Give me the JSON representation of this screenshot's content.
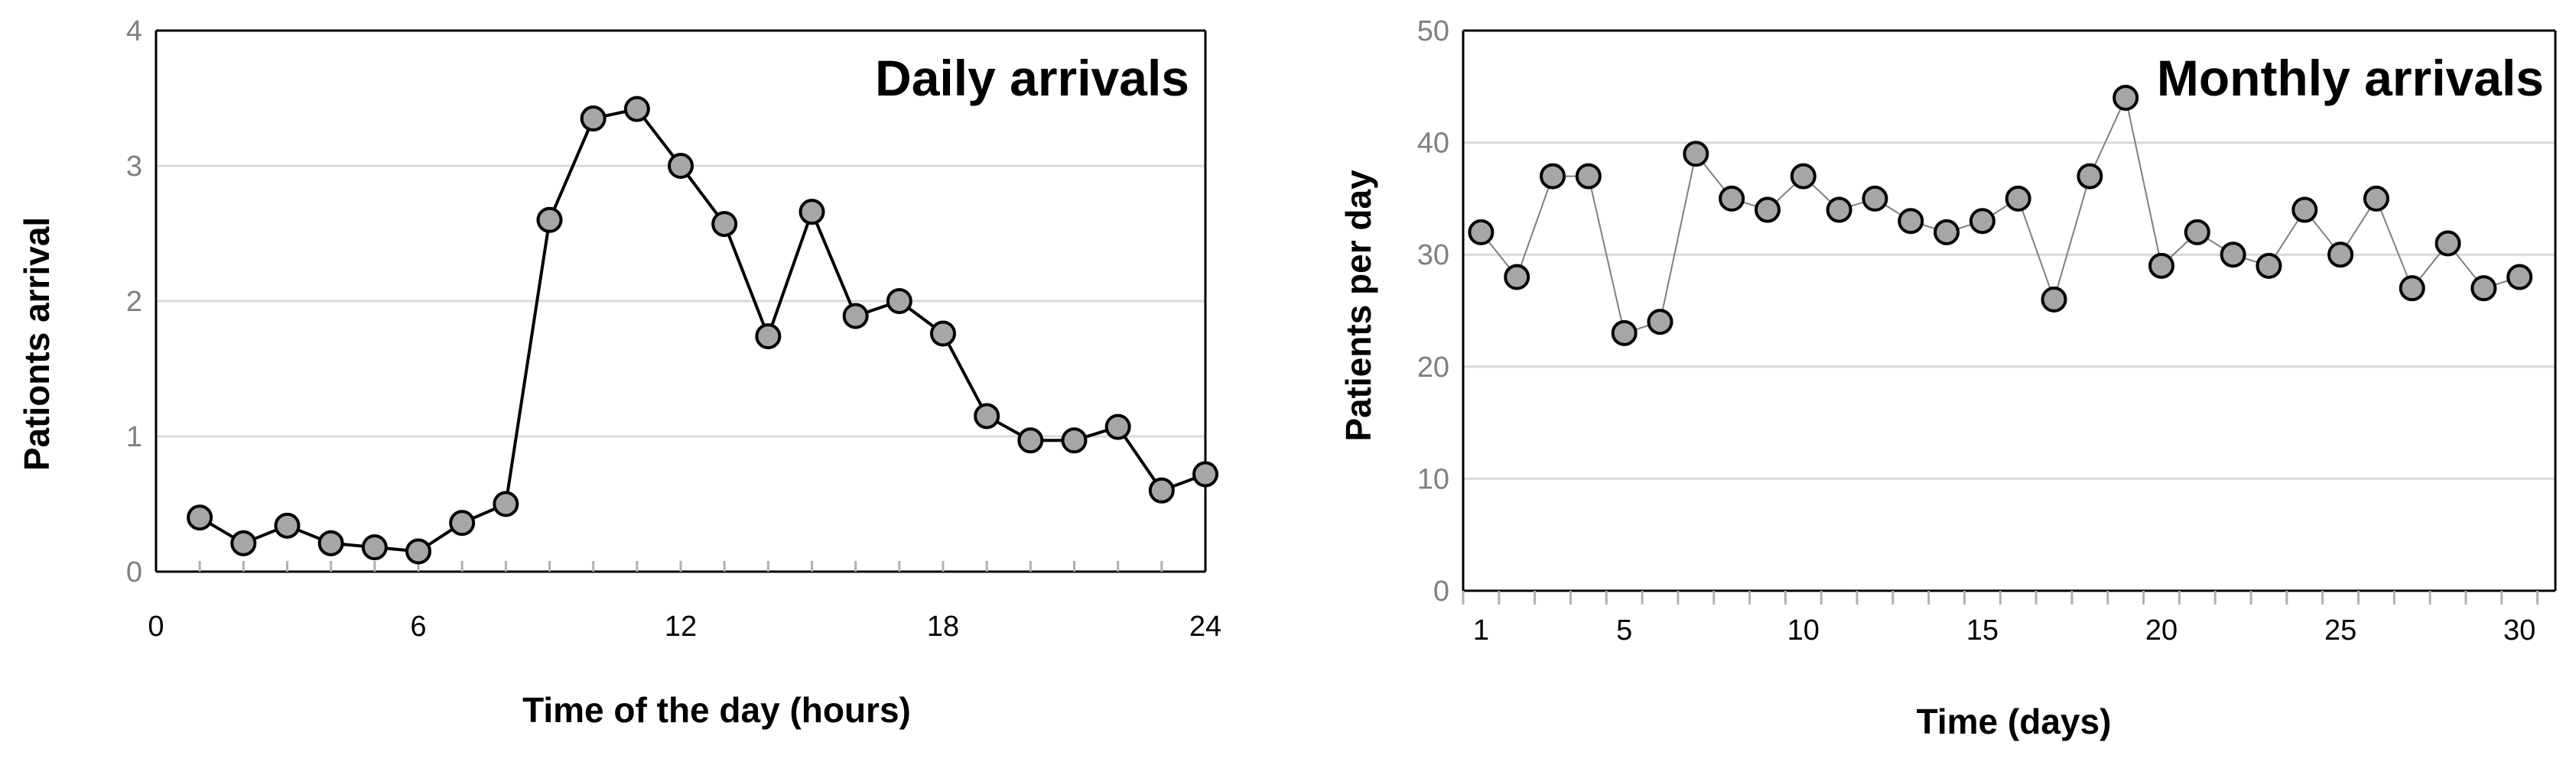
{
  "chart_data": [
    {
      "type": "line",
      "title": "Daily arrivals",
      "xlabel": "Time of the day (hours)",
      "ylabel": "Pationts arrival",
      "xlim": [
        0,
        24
      ],
      "ylim": [
        0,
        4
      ],
      "xticks": [
        "0",
        "6",
        "12",
        "18",
        "24"
      ],
      "yticks": [
        "0",
        "1",
        "2",
        "3",
        "4"
      ],
      "grid": "horizontal",
      "legend": "none",
      "x": [
        1,
        2,
        3,
        4,
        5,
        6,
        7,
        8,
        9,
        10,
        11,
        12,
        13,
        14,
        15,
        16,
        17,
        18,
        19,
        20,
        21,
        22,
        23,
        24
      ],
      "y": [
        0.4,
        0.21,
        0.34,
        0.21,
        0.18,
        0.15,
        0.36,
        0.5,
        2.6,
        3.35,
        3.42,
        3.0,
        2.57,
        1.74,
        2.66,
        1.89,
        2.0,
        1.76,
        1.15,
        0.97,
        0.97,
        1.07,
        0.6,
        0.72
      ],
      "marker_color": "#a6a6a6",
      "line_color": "#000000"
    },
    {
      "type": "line",
      "title": "Monthly arrivals",
      "xlabel": "Time (days)",
      "ylabel": "Patients  per day",
      "xlim": [
        0.5,
        31
      ],
      "ylim": [
        0,
        50
      ],
      "xticks": [
        "1",
        "5",
        "10",
        "15",
        "20",
        "25",
        "30"
      ],
      "yticks": [
        "0",
        "10",
        "20",
        "30",
        "40",
        "50"
      ],
      "grid": "horizontal",
      "legend": "none",
      "x": [
        1,
        2,
        3,
        4,
        5,
        6,
        7,
        8,
        9,
        10,
        11,
        12,
        13,
        14,
        15,
        16,
        17,
        18,
        19,
        20,
        21,
        22,
        23,
        24,
        25,
        26,
        27,
        28,
        29,
        30
      ],
      "y": [
        32,
        28,
        37,
        37,
        23,
        24,
        39,
        35,
        34,
        37,
        34,
        35,
        33,
        32,
        33,
        35,
        26,
        37,
        44,
        29,
        32,
        30,
        29,
        34,
        30,
        35,
        27,
        31,
        27,
        28
      ],
      "marker_color": "#a6a6a6",
      "line_color": "#7f7f7f"
    }
  ]
}
